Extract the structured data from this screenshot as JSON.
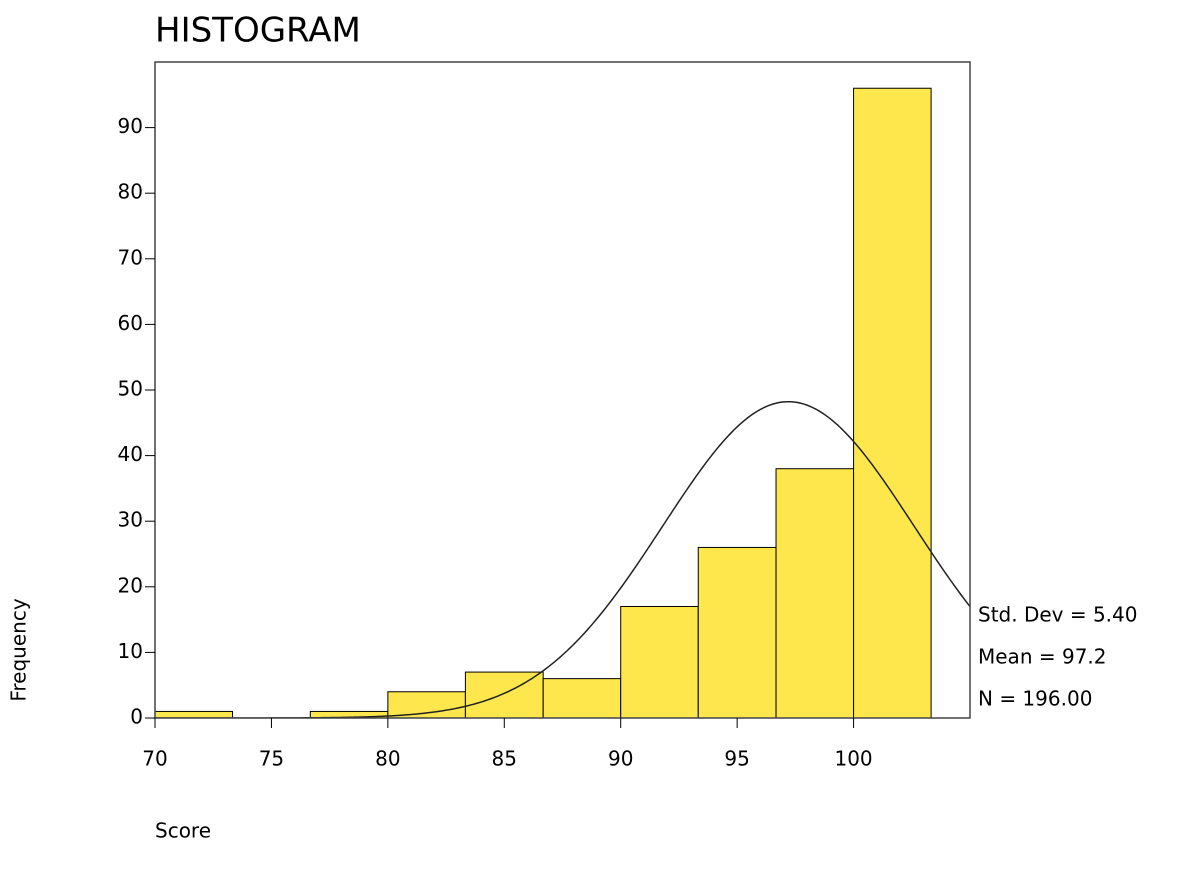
{
  "chart_data": {
    "type": "histogram",
    "title": "HISTOGRAM",
    "x_label": "Score",
    "y_label": "Frequency",
    "bins": [
      70,
      73.33,
      76.67,
      80,
      83.33,
      86.67,
      90,
      93.33,
      96.67,
      100,
      103.33
    ],
    "counts": [
      1,
      0,
      1,
      4,
      7,
      6,
      17,
      26,
      38,
      96
    ],
    "color": "#fde74c",
    "xlim": [
      70,
      105
    ],
    "xticks": [
      70,
      75,
      80,
      85,
      90,
      95,
      100
    ],
    "ylim": [
      0,
      100
    ],
    "yticks": [
      0,
      10,
      20,
      30,
      40,
      50,
      60,
      70,
      80,
      90
    ],
    "normal_curve": true,
    "stats": [
      {
        "value": 5.4,
        "label": "Std. Dev = 5.40"
      },
      {
        "value": 97.2,
        "label": "Mean = 97.2"
      },
      {
        "value": 196,
        "label": "N = 196.00"
      }
    ]
  }
}
